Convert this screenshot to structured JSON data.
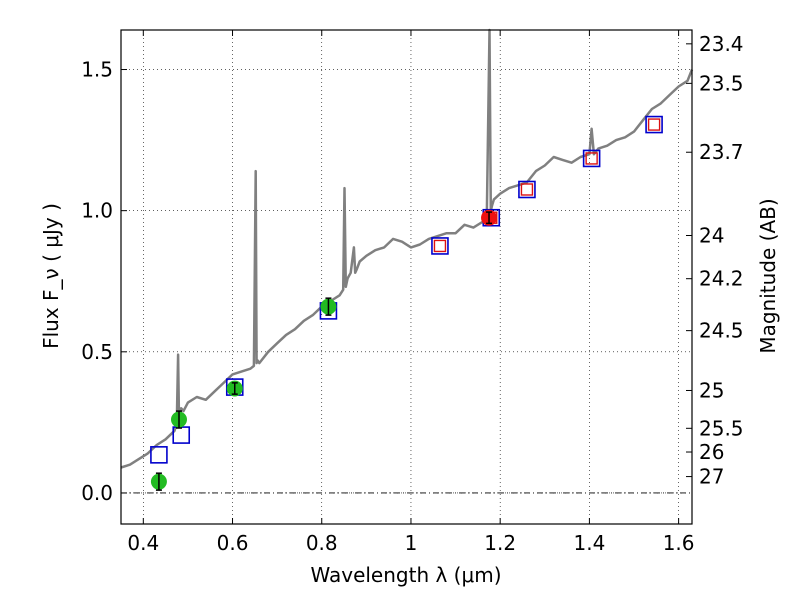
{
  "chart_data": {
    "type": "line",
    "xlabel": "Wavelength  λ (μm)",
    "ylabel_left": "Flux  F_ν  ( μJy )",
    "ylabel_right": "Magnitude (AB)",
    "xlim": [
      0.35,
      1.63
    ],
    "ylim": [
      -0.11,
      1.64
    ],
    "grid": true,
    "legend": "none",
    "colors": {
      "spectrum": "#808080",
      "square_outer": "#0000cc",
      "square_inner": "#dd1111",
      "photometry_green": "#22bb22",
      "photometry_red": "#ee1111",
      "zero_line": "#000000"
    },
    "x_ticks": [
      {
        "value": 0.4,
        "label": "0.4"
      },
      {
        "value": 0.6,
        "label": "0.6"
      },
      {
        "value": 0.8,
        "label": "0.8"
      },
      {
        "value": 1.0,
        "label": "1"
      },
      {
        "value": 1.2,
        "label": "1.2"
      },
      {
        "value": 1.4,
        "label": "1.4"
      },
      {
        "value": 1.6,
        "label": "1.6"
      }
    ],
    "y_ticks": [
      {
        "value": 0.0,
        "label": "0.0"
      },
      {
        "value": 0.5,
        "label": "0.5"
      },
      {
        "value": 1.0,
        "label": "1.0"
      },
      {
        "value": 1.5,
        "label": "1.5"
      }
    ],
    "magnitude_ticks": [
      {
        "flux": 1.591,
        "label": "23.4"
      },
      {
        "flux": 1.451,
        "label": "23.5"
      },
      {
        "flux": 1.207,
        "label": "23.7"
      },
      {
        "flux": 0.912,
        "label": "24"
      },
      {
        "flux": 0.759,
        "label": "24.2"
      },
      {
        "flux": 0.575,
        "label": "24.5"
      },
      {
        "flux": 0.363,
        "label": "25"
      },
      {
        "flux": 0.229,
        "label": "25.5"
      },
      {
        "flux": 0.145,
        "label": "26"
      },
      {
        "flux": 0.058,
        "label": "27"
      }
    ],
    "spectrum": {
      "x": [
        0.35,
        0.37,
        0.39,
        0.41,
        0.43,
        0.45,
        0.47,
        0.475,
        0.478,
        0.48,
        0.482,
        0.485,
        0.49,
        0.5,
        0.52,
        0.54,
        0.56,
        0.58,
        0.6,
        0.62,
        0.64,
        0.648,
        0.652,
        0.654,
        0.656,
        0.66,
        0.68,
        0.7,
        0.72,
        0.74,
        0.76,
        0.78,
        0.8,
        0.82,
        0.84,
        0.848,
        0.851,
        0.854,
        0.858,
        0.865,
        0.872,
        0.875,
        0.878,
        0.885,
        0.9,
        0.92,
        0.94,
        0.96,
        0.98,
        1.0,
        1.02,
        1.04,
        1.06,
        1.08,
        1.1,
        1.12,
        1.14,
        1.16,
        1.17,
        1.176,
        1.179,
        1.182,
        1.186,
        1.2,
        1.22,
        1.24,
        1.26,
        1.28,
        1.3,
        1.32,
        1.34,
        1.36,
        1.38,
        1.4,
        1.405,
        1.41,
        1.415,
        1.42,
        1.44,
        1.46,
        1.48,
        1.5,
        1.52,
        1.54,
        1.56,
        1.58,
        1.6,
        1.62,
        1.63
      ],
      "y": [
        0.09,
        0.1,
        0.12,
        0.14,
        0.17,
        0.19,
        0.22,
        0.25,
        0.49,
        0.26,
        0.28,
        0.3,
        0.29,
        0.32,
        0.34,
        0.33,
        0.36,
        0.39,
        0.42,
        0.43,
        0.44,
        0.45,
        1.14,
        0.46,
        0.47,
        0.46,
        0.5,
        0.53,
        0.56,
        0.58,
        0.61,
        0.63,
        0.66,
        0.68,
        0.7,
        0.72,
        1.08,
        0.73,
        0.76,
        0.78,
        0.87,
        0.78,
        0.79,
        0.82,
        0.84,
        0.86,
        0.87,
        0.9,
        0.89,
        0.87,
        0.88,
        0.9,
        0.91,
        0.92,
        0.92,
        0.95,
        0.94,
        0.96,
        0.98,
        1.64,
        1.0,
        1.02,
        1.04,
        1.06,
        1.08,
        1.09,
        1.1,
        1.14,
        1.16,
        1.19,
        1.18,
        1.17,
        1.19,
        1.2,
        1.29,
        1.2,
        1.21,
        1.22,
        1.23,
        1.25,
        1.26,
        1.28,
        1.32,
        1.36,
        1.38,
        1.41,
        1.44,
        1.46,
        1.5
      ]
    },
    "synthetic_squares": [
      {
        "x": 0.435,
        "y": 0.135,
        "inner": false
      },
      {
        "x": 0.485,
        "y": 0.205,
        "inner": false
      },
      {
        "x": 0.605,
        "y": 0.375,
        "inner": false
      },
      {
        "x": 0.815,
        "y": 0.645,
        "inner": false
      },
      {
        "x": 1.065,
        "y": 0.875,
        "inner": true
      },
      {
        "x": 1.18,
        "y": 0.975,
        "inner": true
      },
      {
        "x": 1.26,
        "y": 1.075,
        "inner": true
      },
      {
        "x": 1.405,
        "y": 1.185,
        "inner": true
      },
      {
        "x": 1.545,
        "y": 1.305,
        "inner": true
      }
    ],
    "photometry": [
      {
        "x": 0.435,
        "y": 0.04,
        "err": 0.03,
        "color": "green"
      },
      {
        "x": 0.48,
        "y": 0.26,
        "err": 0.03,
        "color": "green"
      },
      {
        "x": 0.605,
        "y": 0.37,
        "err": 0.02,
        "color": "green"
      },
      {
        "x": 0.815,
        "y": 0.66,
        "err": 0.03,
        "color": "green"
      },
      {
        "x": 1.175,
        "y": 0.975,
        "err": 0.02,
        "color": "red"
      }
    ]
  }
}
